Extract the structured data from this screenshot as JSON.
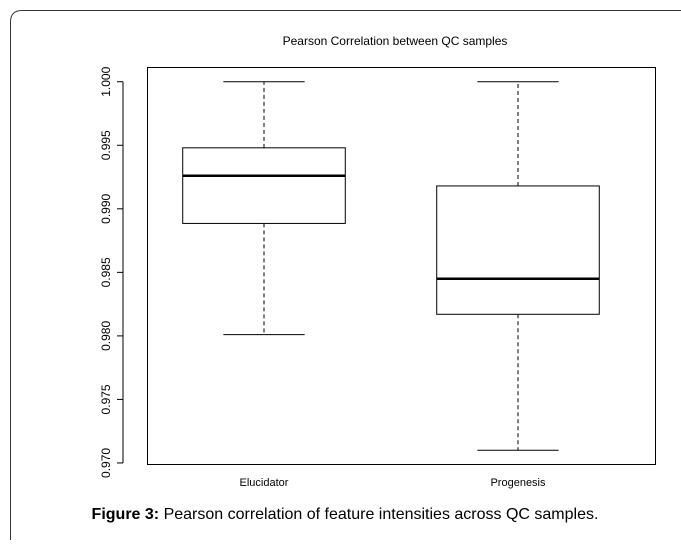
{
  "chart_data": {
    "type": "box",
    "title": "Pearson Correlation between QC samples",
    "categories": [
      "Elucidator",
      "Progenesis"
    ],
    "stats": [
      {
        "min": 0.9801,
        "q1": 0.98885,
        "median": 0.9926,
        "q3": 0.9948,
        "max": 1.0
      },
      {
        "min": 0.971,
        "q1": 0.9817,
        "median": 0.9845,
        "q3": 0.9918,
        "max": 1.0
      }
    ],
    "ylim": [
      0.96984,
      1.00116
    ],
    "yticks": [
      {
        "value": 0.97,
        "label": "0.970"
      },
      0.975,
      {
        "value": 0.98,
        "label": "0.980"
      },
      0.985,
      {
        "value": 0.99,
        "label": "0.990"
      },
      0.995,
      {
        "value": 1.0,
        "label": "1.000"
      }
    ],
    "color": "#000000"
  },
  "caption": {
    "label": "Figure 3:",
    "text": "Pearson correlation of feature intensities across QC samples."
  }
}
